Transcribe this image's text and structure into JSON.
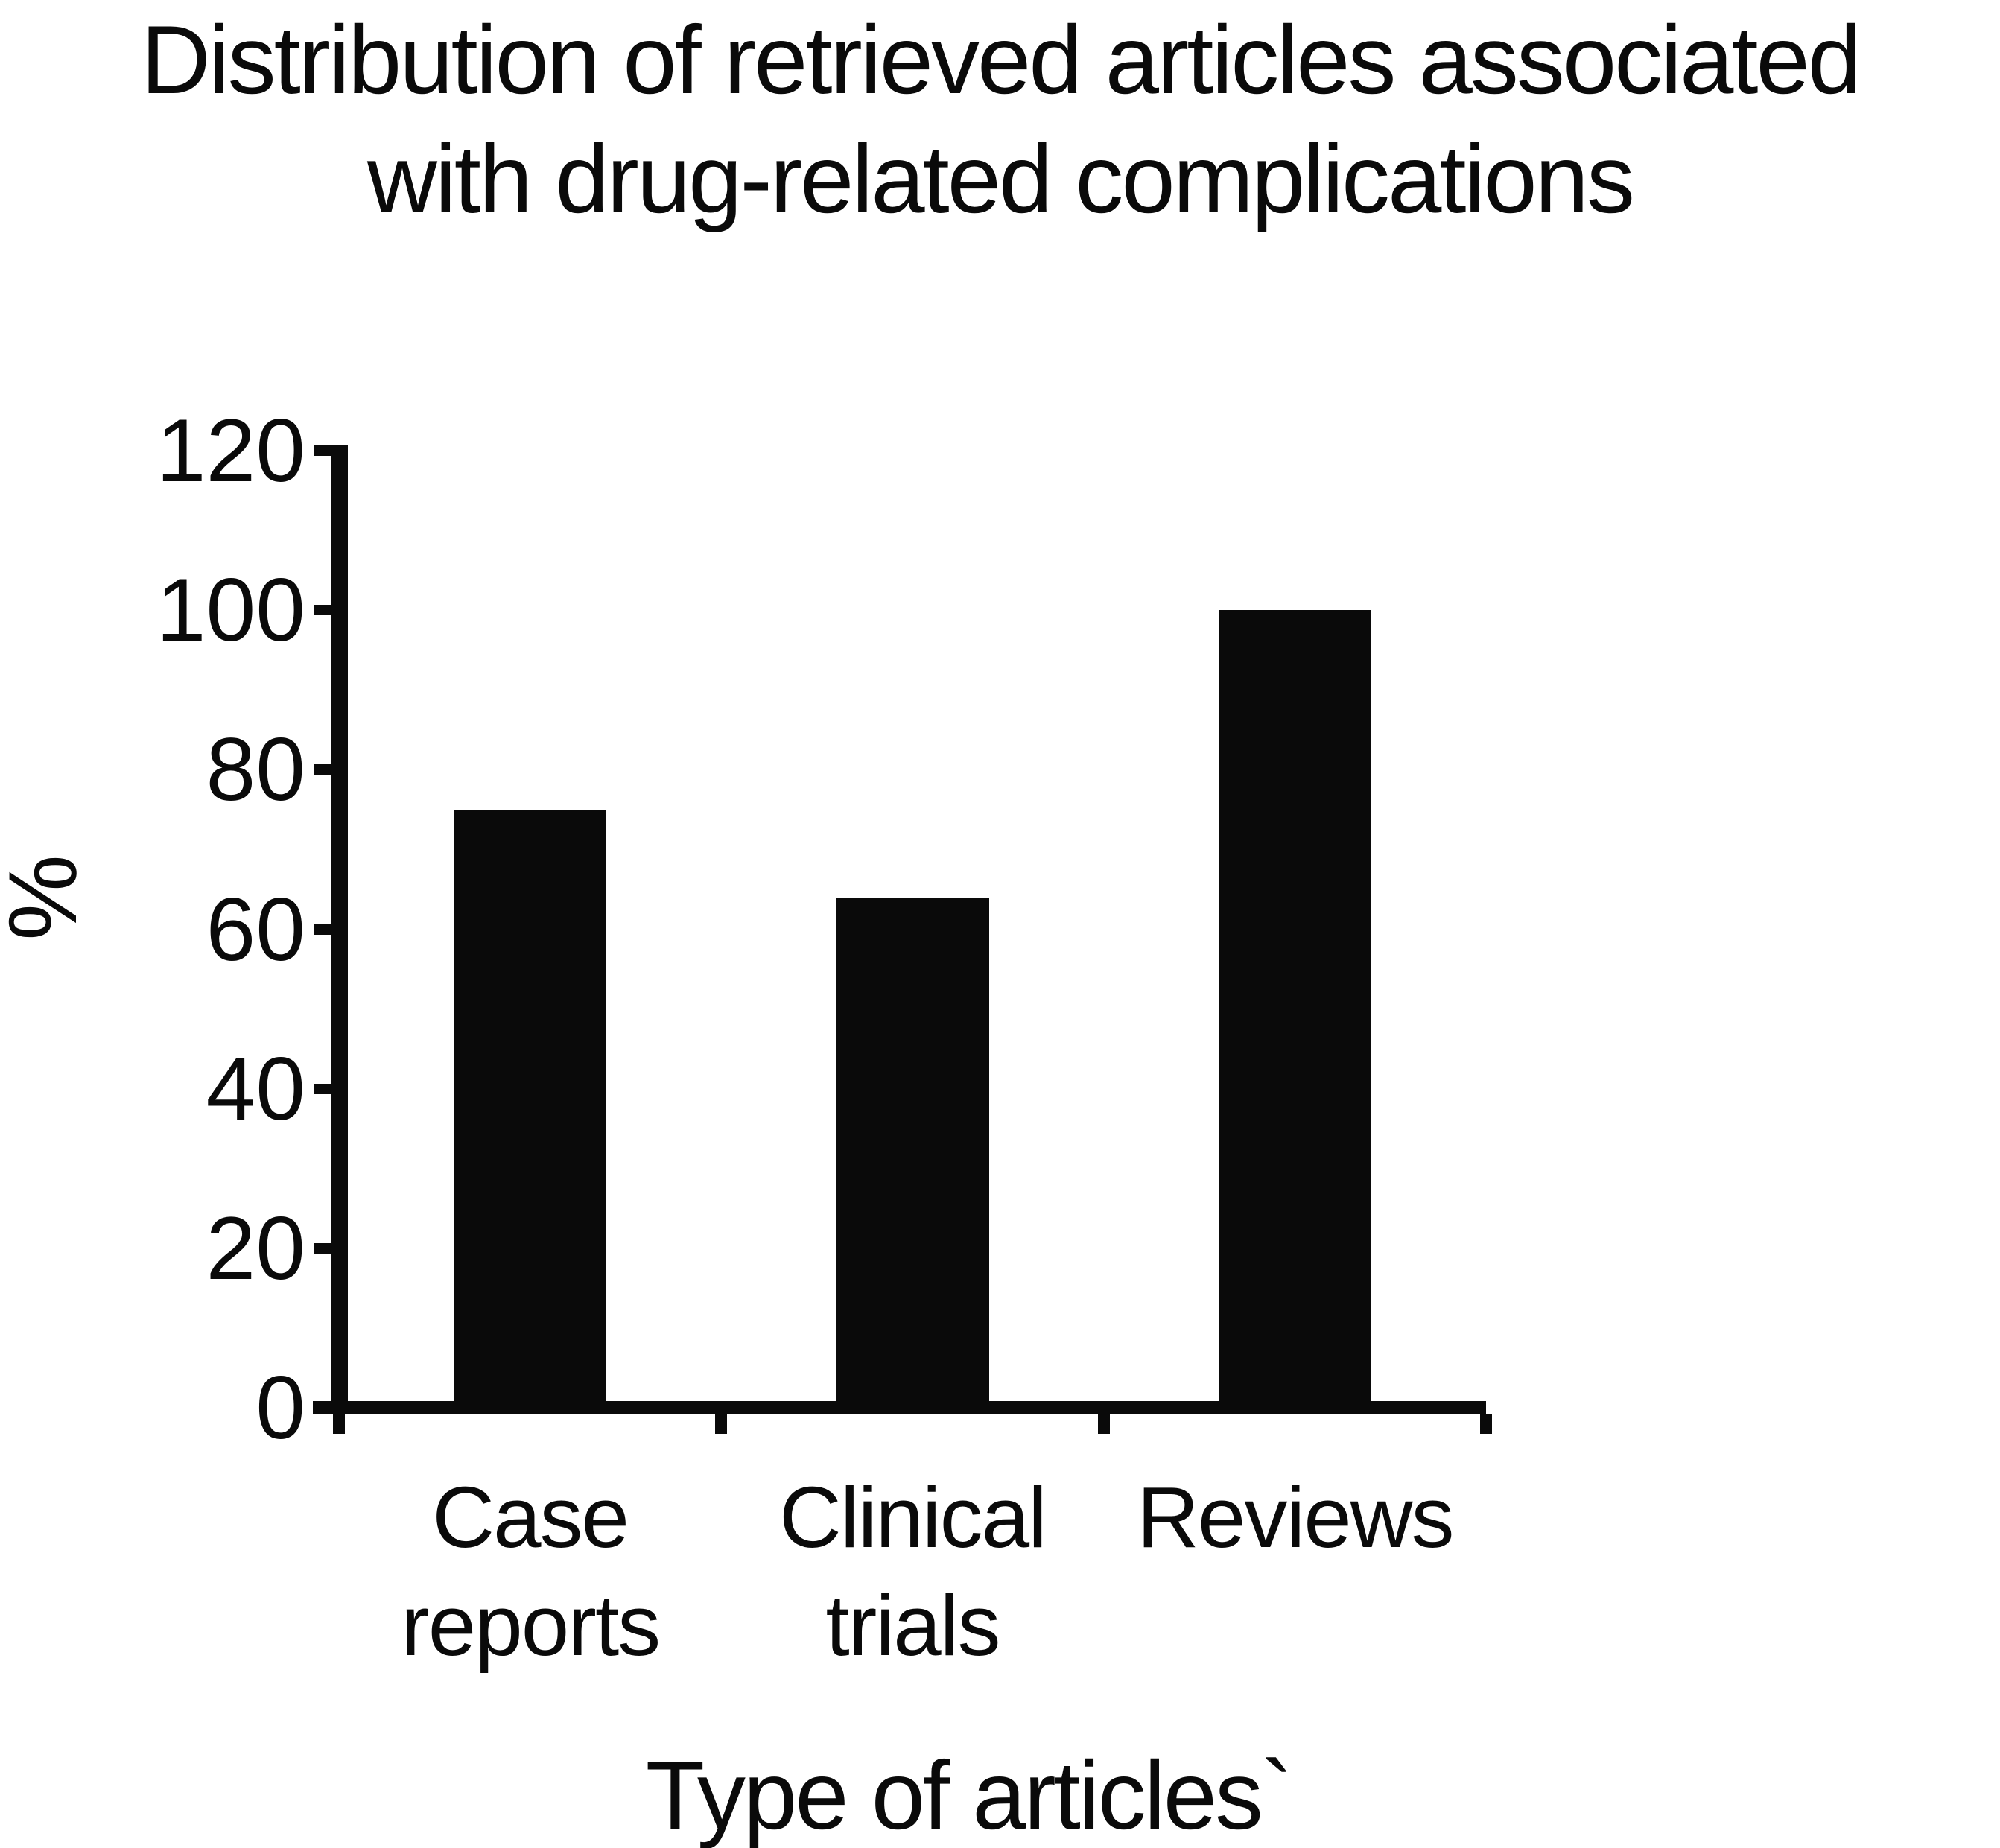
{
  "figure": {
    "title_line1": "Distribution of retrieved articles associated",
    "title_line2": "with drug-related complications"
  },
  "chart_data": {
    "type": "bar",
    "title": "Distribution of retrieved articles associated with drug-related complications",
    "categories": [
      "Case reports",
      "Clinical trials",
      "Reviews"
    ],
    "category_lines": [
      [
        "Case",
        "reports"
      ],
      [
        "Clinical",
        "trials"
      ],
      [
        "Reviews"
      ]
    ],
    "values": [
      75,
      64,
      100
    ],
    "xlabel": "Type of articles`",
    "ylabel": "%",
    "yticks": [
      0,
      20,
      40,
      60,
      80,
      100,
      120
    ],
    "ylim": [
      0,
      120
    ],
    "bar_color": "#0a0a0a",
    "grid": false,
    "legend": null
  }
}
